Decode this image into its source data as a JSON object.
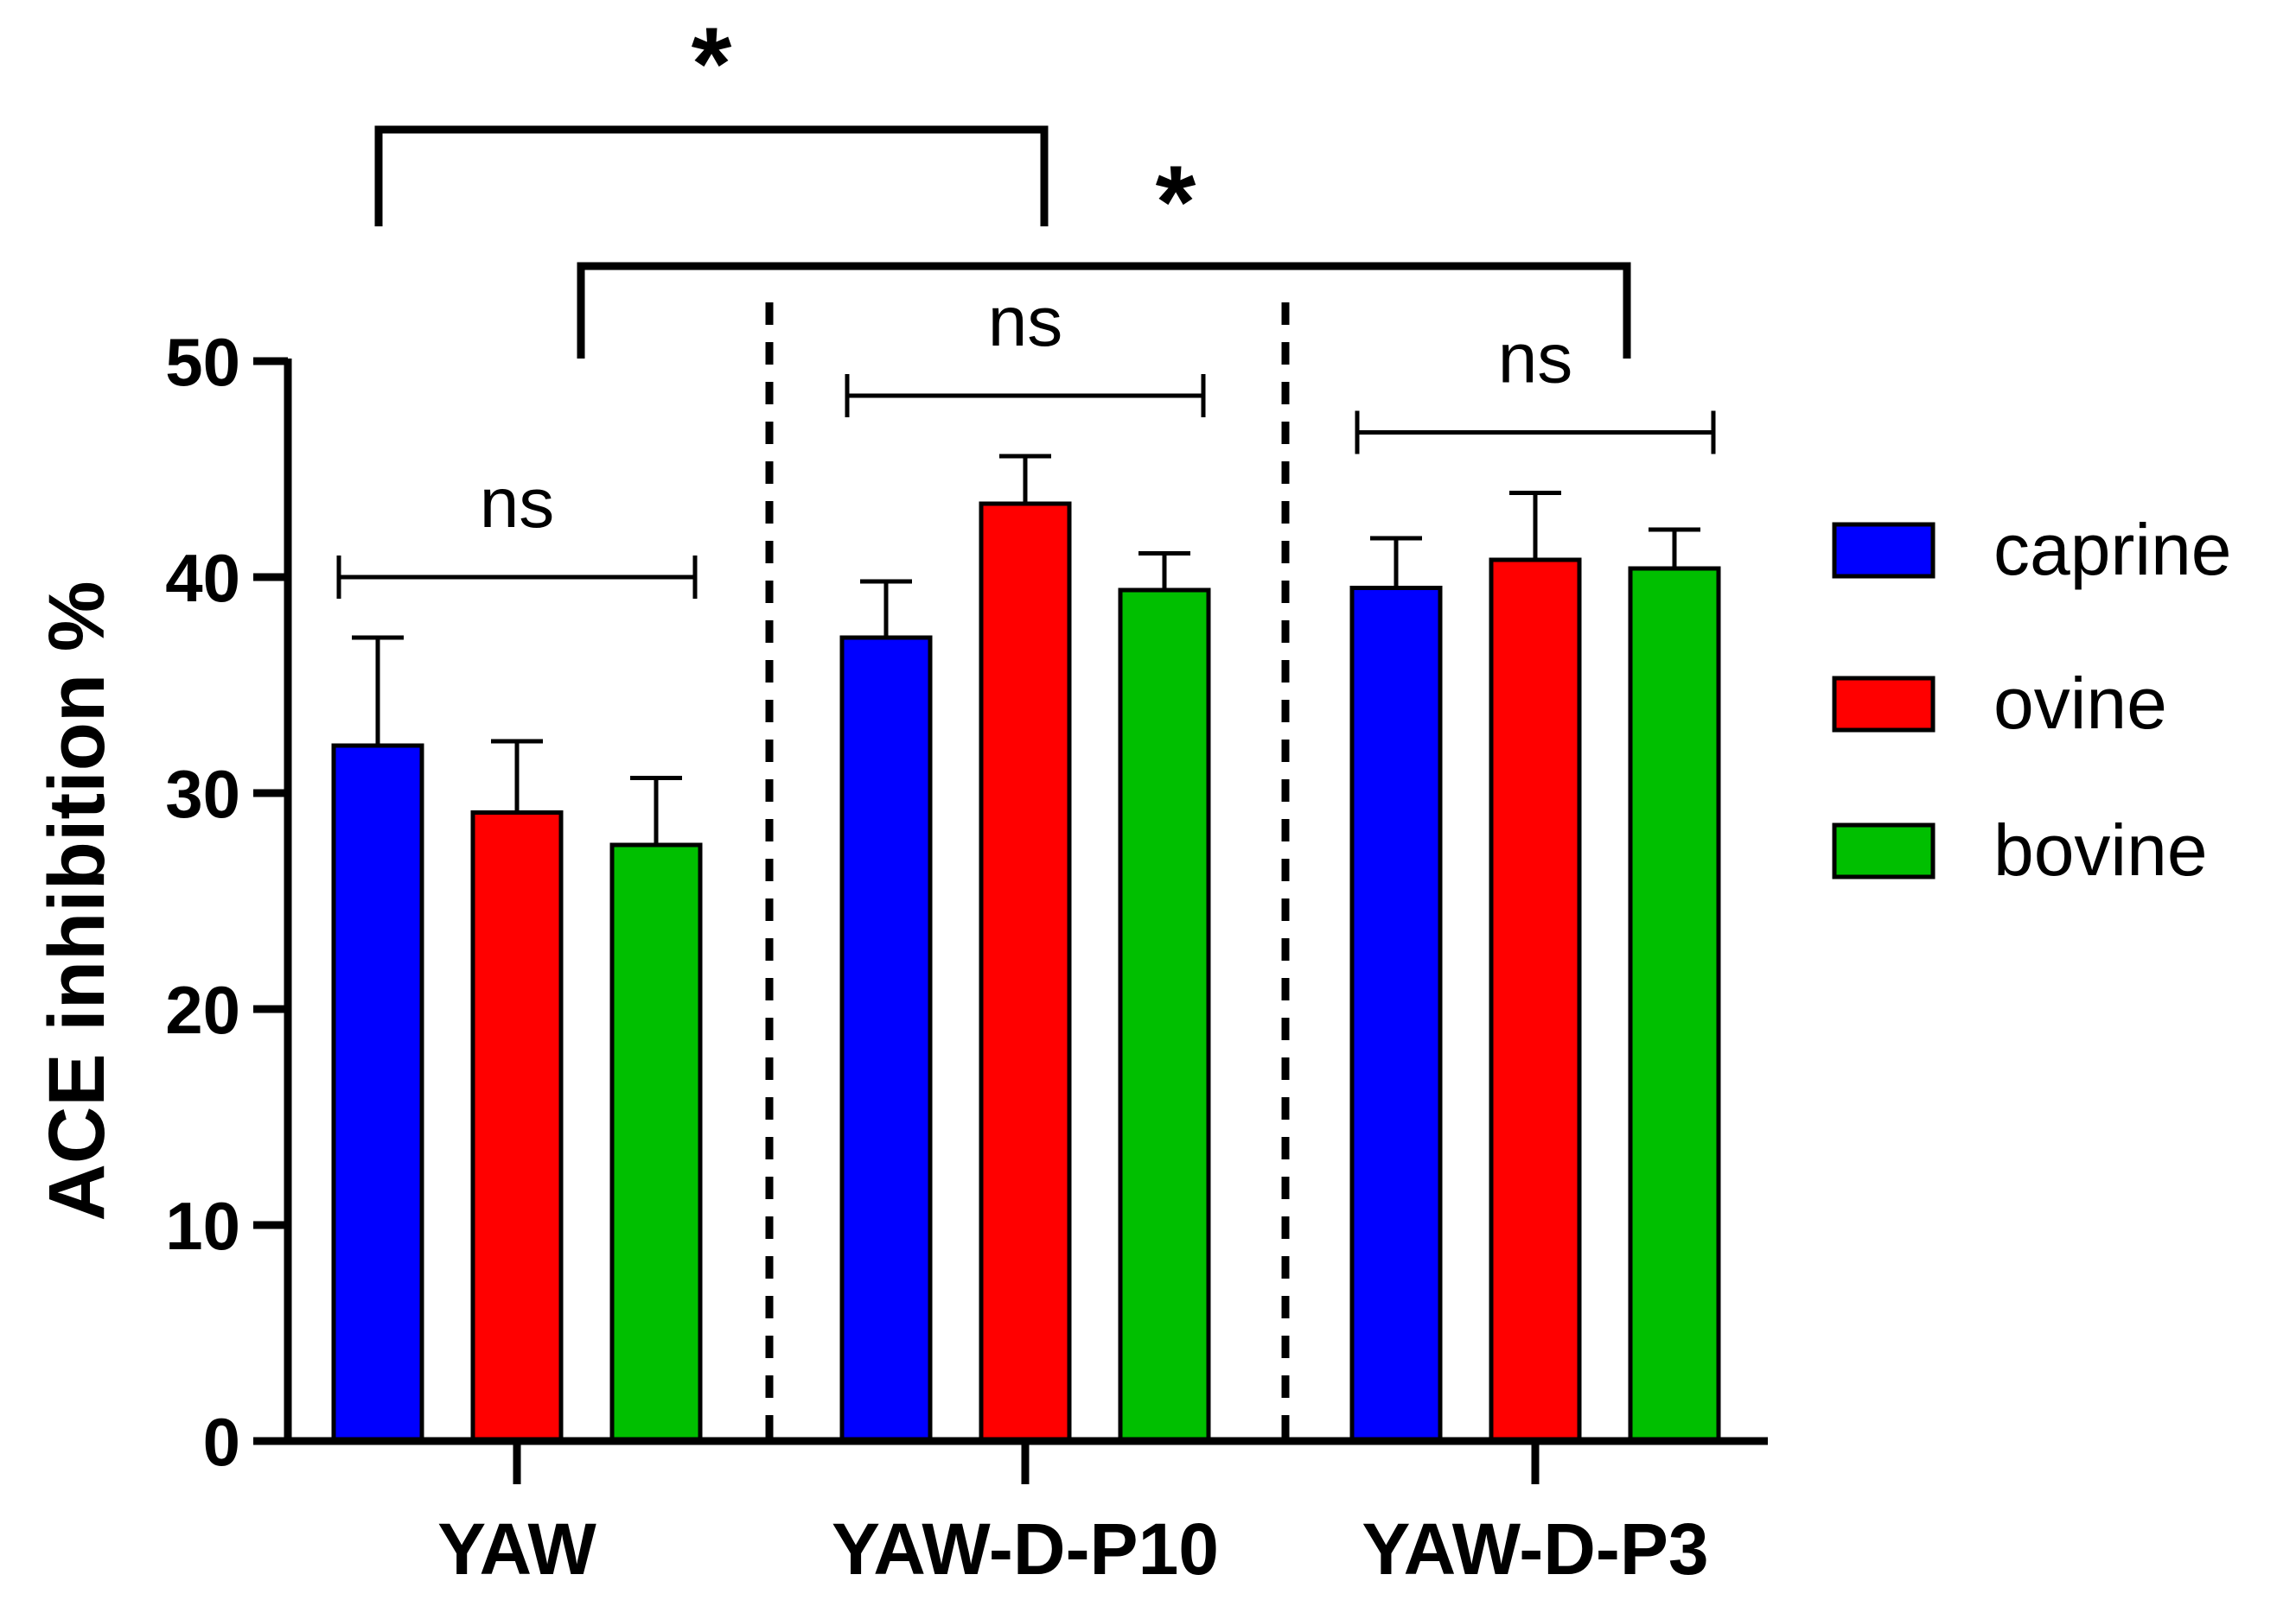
{
  "chart_data": {
    "type": "bar",
    "title": "",
    "xlabel": "",
    "ylabel": "ACE inhibition %",
    "ylim": [
      0,
      50
    ],
    "yticks": [
      "0",
      "10",
      "20",
      "30",
      "40",
      "50"
    ],
    "categories": [
      "YAW",
      "YAW-D-P10",
      "YAW-D-P3"
    ],
    "series": [
      {
        "name": "caprine",
        "color": "#0000ff",
        "values": [
          32.2,
          37.2,
          39.5
        ],
        "errors": [
          5.0,
          2.6,
          2.3
        ]
      },
      {
        "name": "ovine",
        "color": "#ff0000",
        "values": [
          29.1,
          43.4,
          40.8
        ],
        "errors": [
          3.3,
          2.2,
          3.1
        ]
      },
      {
        "name": "bovine",
        "color": "#00bf00",
        "values": [
          27.6,
          39.4,
          40.4
        ],
        "errors": [
          3.1,
          1.7,
          1.8
        ]
      }
    ],
    "grid": false,
    "legend_position": "right",
    "annotations": {
      "within_group": [
        "ns",
        "ns",
        "ns"
      ],
      "between_groups": [
        {
          "label": "*",
          "from": "YAW caprine",
          "to": "YAW-D-P10 ovine"
        },
        {
          "label": "*",
          "from": "YAW-D-P10 caprine",
          "to": "YAW-D-P3 bovine"
        }
      ]
    }
  }
}
